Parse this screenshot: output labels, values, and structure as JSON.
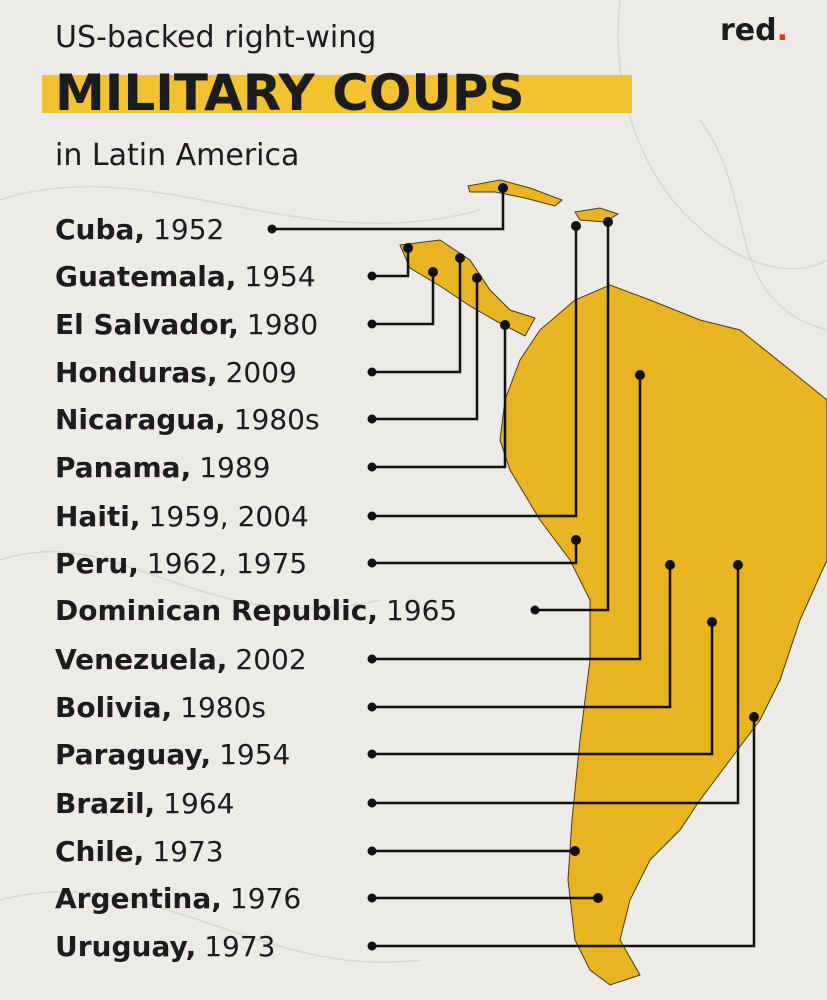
{
  "header": {
    "subtitle": "US-backed right-wing",
    "title": "MILITARY COUPS",
    "tagline": "in Latin America"
  },
  "logo": {
    "text": "red",
    "dot": "."
  },
  "entries": [
    {
      "name": "Cuba,",
      "years": "1952"
    },
    {
      "name": "Guatemala,",
      "years": "1954"
    },
    {
      "name": "El Salvador,",
      "years": "1980"
    },
    {
      "name": "Honduras,",
      "years": "2009"
    },
    {
      "name": "Nicaragua,",
      "years": "1980s"
    },
    {
      "name": "Panama,",
      "years": "1989"
    },
    {
      "name": "Haiti,",
      "years": "1959, 2004"
    },
    {
      "name": "Peru,",
      "years": "1962, 1975"
    },
    {
      "name": "Dominican Republic,",
      "years": "1965"
    },
    {
      "name": "Venezuela,",
      "years": "2002"
    },
    {
      "name": "Bolivia,",
      "years": "1980s"
    },
    {
      "name": "Paraguay,",
      "years": "1954"
    },
    {
      "name": "Brazil,",
      "years": "1964"
    },
    {
      "name": "Chile,",
      "years": "1973"
    },
    {
      "name": "Argentina,",
      "years": "1976"
    },
    {
      "name": "Uruguay,",
      "years": "1973"
    }
  ]
}
